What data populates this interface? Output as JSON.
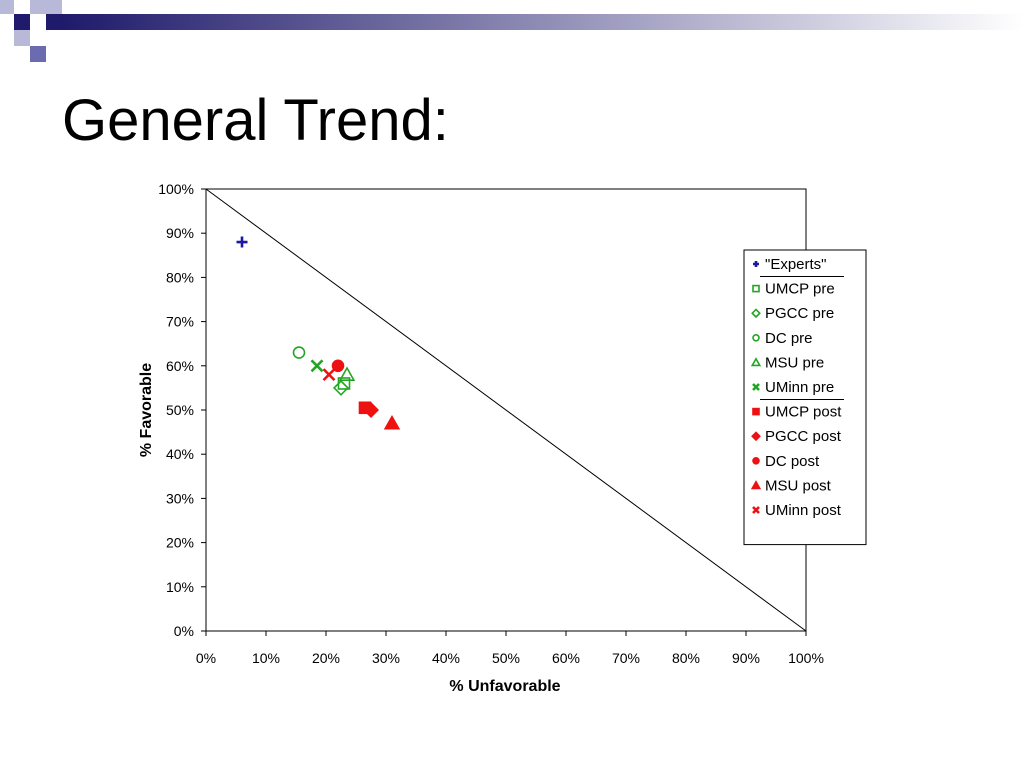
{
  "slide": {
    "title": "General Trend:"
  },
  "theme": {
    "header_dark": "#1f1a6b",
    "header_mid": "#6b6bb0",
    "header_light": "#b8b8d8",
    "series_pre_color": "#22a622",
    "series_post_color": "#ee1111",
    "experts_color": "#1a1aa0",
    "icons": [
      "plus-marker",
      "square-marker",
      "diamond-marker",
      "circle-marker",
      "triangle-marker",
      "x-marker"
    ]
  },
  "chart_data": {
    "type": "scatter",
    "title": "",
    "xlabel": "% Unfavorable",
    "ylabel": "% Favorable",
    "xlim": [
      0,
      100
    ],
    "ylim": [
      0,
      100
    ],
    "x_ticks": [
      0,
      10,
      20,
      30,
      40,
      50,
      60,
      70,
      80,
      90,
      100
    ],
    "y_ticks": [
      0,
      10,
      20,
      30,
      40,
      50,
      60,
      70,
      80,
      90,
      100
    ],
    "x_tick_labels": [
      "0%",
      "10%",
      "20%",
      "30%",
      "40%",
      "50%",
      "60%",
      "70%",
      "80%",
      "90%",
      "100%"
    ],
    "y_tick_labels": [
      "0%",
      "10%",
      "20%",
      "30%",
      "40%",
      "50%",
      "60%",
      "70%",
      "80%",
      "90%",
      "100%"
    ],
    "grid": false,
    "reference_line": {
      "from": [
        0,
        100
      ],
      "to": [
        100,
        0
      ]
    },
    "legend_position": "right",
    "series": [
      {
        "name": "\"Experts\"",
        "marker": "plus",
        "color": "#1a1aa0",
        "filled": true,
        "points": [
          [
            6,
            88
          ]
        ]
      },
      {
        "name": "UMCP pre",
        "marker": "square",
        "color": "#22a622",
        "filled": false,
        "points": [
          [
            23,
            56
          ]
        ]
      },
      {
        "name": "PGCC pre",
        "marker": "diamond",
        "color": "#22a622",
        "filled": false,
        "points": [
          [
            22.5,
            55
          ]
        ]
      },
      {
        "name": "DC  pre",
        "marker": "circle",
        "color": "#22a622",
        "filled": false,
        "points": [
          [
            15.5,
            63
          ]
        ]
      },
      {
        "name": "MSU  pre",
        "marker": "triangle",
        "color": "#22a622",
        "filled": false,
        "points": [
          [
            23.5,
            58
          ]
        ]
      },
      {
        "name": "UMinn pre",
        "marker": "x",
        "color": "#22a622",
        "filled": true,
        "points": [
          [
            18.5,
            60
          ]
        ]
      },
      {
        "name": "UMCP post",
        "marker": "square",
        "color": "#ee1111",
        "filled": true,
        "points": [
          [
            26.5,
            50.5
          ]
        ]
      },
      {
        "name": "PGCC post",
        "marker": "diamond",
        "color": "#ee1111",
        "filled": true,
        "points": [
          [
            27.5,
            50
          ]
        ]
      },
      {
        "name": "DC post",
        "marker": "circle",
        "color": "#ee1111",
        "filled": true,
        "points": [
          [
            22,
            60
          ]
        ]
      },
      {
        "name": "MSU post",
        "marker": "triangle",
        "color": "#ee1111",
        "filled": true,
        "points": [
          [
            31,
            47
          ]
        ]
      },
      {
        "name": "UMinn post",
        "marker": "x",
        "color": "#ee1111",
        "filled": true,
        "points": [
          [
            20.5,
            58
          ]
        ]
      }
    ],
    "legend_separators_after": [
      0,
      5
    ]
  }
}
